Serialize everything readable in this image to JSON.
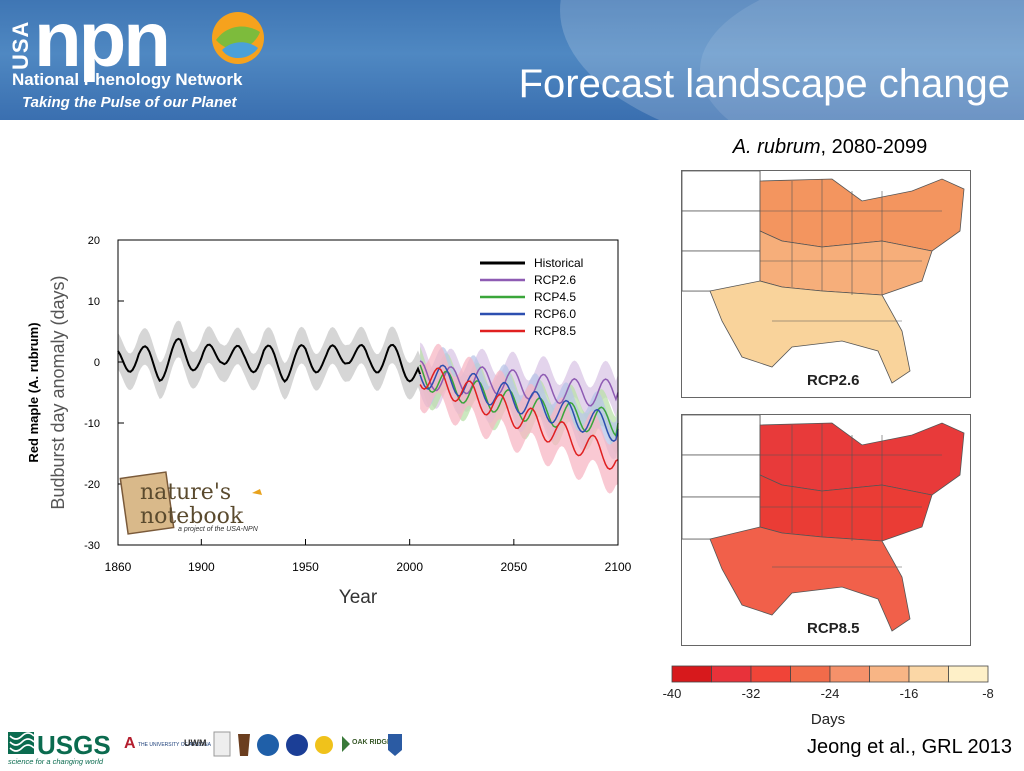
{
  "header": {
    "logo_usa": "USA",
    "logo_npn": "npn",
    "logo_subtitle": "National Phenology Network",
    "logo_tagline": "Taking the Pulse of our Planet",
    "title": "Forecast landscape change"
  },
  "colors": {
    "header_blue": "#4a82c0",
    "historical": "#000000",
    "rcp26": "#8e5bb3",
    "rcp45": "#3aa63a",
    "rcp60": "#2d4fb0",
    "rcp85": "#e02020"
  },
  "chart_data": {
    "type": "line",
    "title": "",
    "xlabel": "Year",
    "ylabel": "Budburst day anomaly (days)",
    "ylabel_species": "Red maple (A. rubrum)",
    "xlim": [
      1860,
      2100
    ],
    "ylim": [
      -30,
      20
    ],
    "xticks": [
      1860,
      1900,
      1950,
      2000,
      2050,
      2100
    ],
    "yticks": [
      20,
      10,
      0,
      -10,
      -20,
      -30
    ],
    "legend_position": "top-right",
    "series": [
      {
        "name": "Historical",
        "x": [
          1860,
          1870,
          1880,
          1890,
          1900,
          1910,
          1920,
          1930,
          1940,
          1950,
          1960,
          1970,
          1980,
          1990,
          2000,
          2005
        ],
        "values": [
          0,
          1,
          -1,
          2,
          0,
          2,
          0,
          1,
          -1,
          1,
          0,
          2,
          0,
          1,
          -1,
          -2
        ]
      },
      {
        "name": "RCP2.6",
        "x": [
          2005,
          2020,
          2040,
          2060,
          2080,
          2100
        ],
        "values": [
          -2,
          -3,
          -3,
          -4,
          -5,
          -5
        ]
      },
      {
        "name": "RCP4.5",
        "x": [
          2005,
          2020,
          2040,
          2060,
          2080,
          2100
        ],
        "values": [
          -2,
          -4,
          -6,
          -8,
          -9,
          -10
        ]
      },
      {
        "name": "RCP6.0",
        "x": [
          2005,
          2020,
          2040,
          2060,
          2080,
          2100
        ],
        "values": [
          -2,
          -3,
          -5,
          -7,
          -9,
          -11
        ]
      },
      {
        "name": "RCP8.5",
        "x": [
          2005,
          2020,
          2040,
          2060,
          2080,
          2100
        ],
        "values": [
          -2,
          -4,
          -7,
          -10,
          -13,
          -16
        ]
      }
    ]
  },
  "maps": {
    "title_species": "A. rubrum",
    "title_period": ", 2080-2099",
    "panels": [
      {
        "label": "RCP2.6"
      },
      {
        "label": "RCP8.5"
      }
    ]
  },
  "colorbar": {
    "label": "Days",
    "ticks": [
      "-40",
      "-32",
      "-24",
      "-16",
      "-8"
    ],
    "colors": [
      "#d7191c",
      "#e8323a",
      "#f04438",
      "#f26b4a",
      "#f5916a",
      "#f8b585",
      "#fbd7a6",
      "#fef0c8"
    ]
  },
  "inset_logo": {
    "line1": "nature's",
    "line2": "notebook",
    "caption": "a project of the USA-NPN"
  },
  "footer": {
    "usgs": "USGS",
    "usgs_tagline": "science for a changing world",
    "partner1": "THE UNIVERSITY OF ARIZONA",
    "partner2": "UWM",
    "partner3": "OAK RIDGE",
    "citation": "Jeong et al., GRL 2013"
  }
}
